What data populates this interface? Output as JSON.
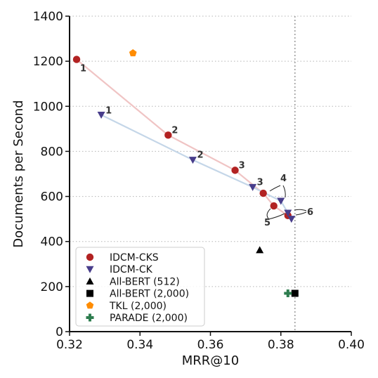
{
  "chart_data": {
    "type": "scatter",
    "xlabel": "MRR@10",
    "ylabel": "Documents per Second",
    "xlim": [
      0.32,
      0.4
    ],
    "ylim": [
      0,
      1400
    ],
    "xticks": [
      "0.32",
      "0.34",
      "0.36",
      "0.38",
      "0.40"
    ],
    "yticks": [
      "0",
      "200",
      "400",
      "600",
      "800",
      "1000",
      "1200",
      "1400"
    ],
    "grid": "horizontal dotted",
    "vertical_reference_line": 0.384,
    "legend_position": "lower-left",
    "series": [
      {
        "name": "IDCM-CKS",
        "marker": "circle",
        "color": "#b22222",
        "line_color": "#f0c4c4",
        "connected": true,
        "points": [
          {
            "x": 0.322,
            "y": 1208,
            "label": "1"
          },
          {
            "x": 0.348,
            "y": 872,
            "label": "2"
          },
          {
            "x": 0.367,
            "y": 716,
            "label": "3"
          },
          {
            "x": 0.375,
            "y": 614,
            "label": "4"
          },
          {
            "x": 0.378,
            "y": 558,
            "label": "5"
          },
          {
            "x": 0.382,
            "y": 515,
            "label": "6"
          }
        ]
      },
      {
        "name": "IDCM-CK",
        "marker": "triangle-down",
        "color": "#483d8b",
        "line_color": "#c4d6e8",
        "connected": true,
        "points": [
          {
            "x": 0.329,
            "y": 962,
            "label": "1"
          },
          {
            "x": 0.355,
            "y": 762,
            "label": "2"
          },
          {
            "x": 0.372,
            "y": 641,
            "label": "3"
          },
          {
            "x": 0.38,
            "y": 580,
            "label": "4"
          },
          {
            "x": 0.382,
            "y": 527,
            "label": "5"
          },
          {
            "x": 0.383,
            "y": 500,
            "label": "6"
          }
        ]
      },
      {
        "name": "All-BERT (512)",
        "marker": "triangle-up",
        "color": "#000000",
        "points": [
          {
            "x": 0.374,
            "y": 362
          }
        ]
      },
      {
        "name": "All-BERT (2,000)",
        "marker": "square",
        "color": "#000000",
        "points": [
          {
            "x": 0.384,
            "y": 170
          }
        ]
      },
      {
        "name": "TKL (2,000)",
        "marker": "pentagon",
        "color": "#ff8c00",
        "points": [
          {
            "x": 0.338,
            "y": 1236
          }
        ]
      },
      {
        "name": "PARADE (2,000)",
        "marker": "plus",
        "color": "#2e7d4f",
        "points": [
          {
            "x": 0.382,
            "y": 170
          }
        ]
      }
    ]
  }
}
